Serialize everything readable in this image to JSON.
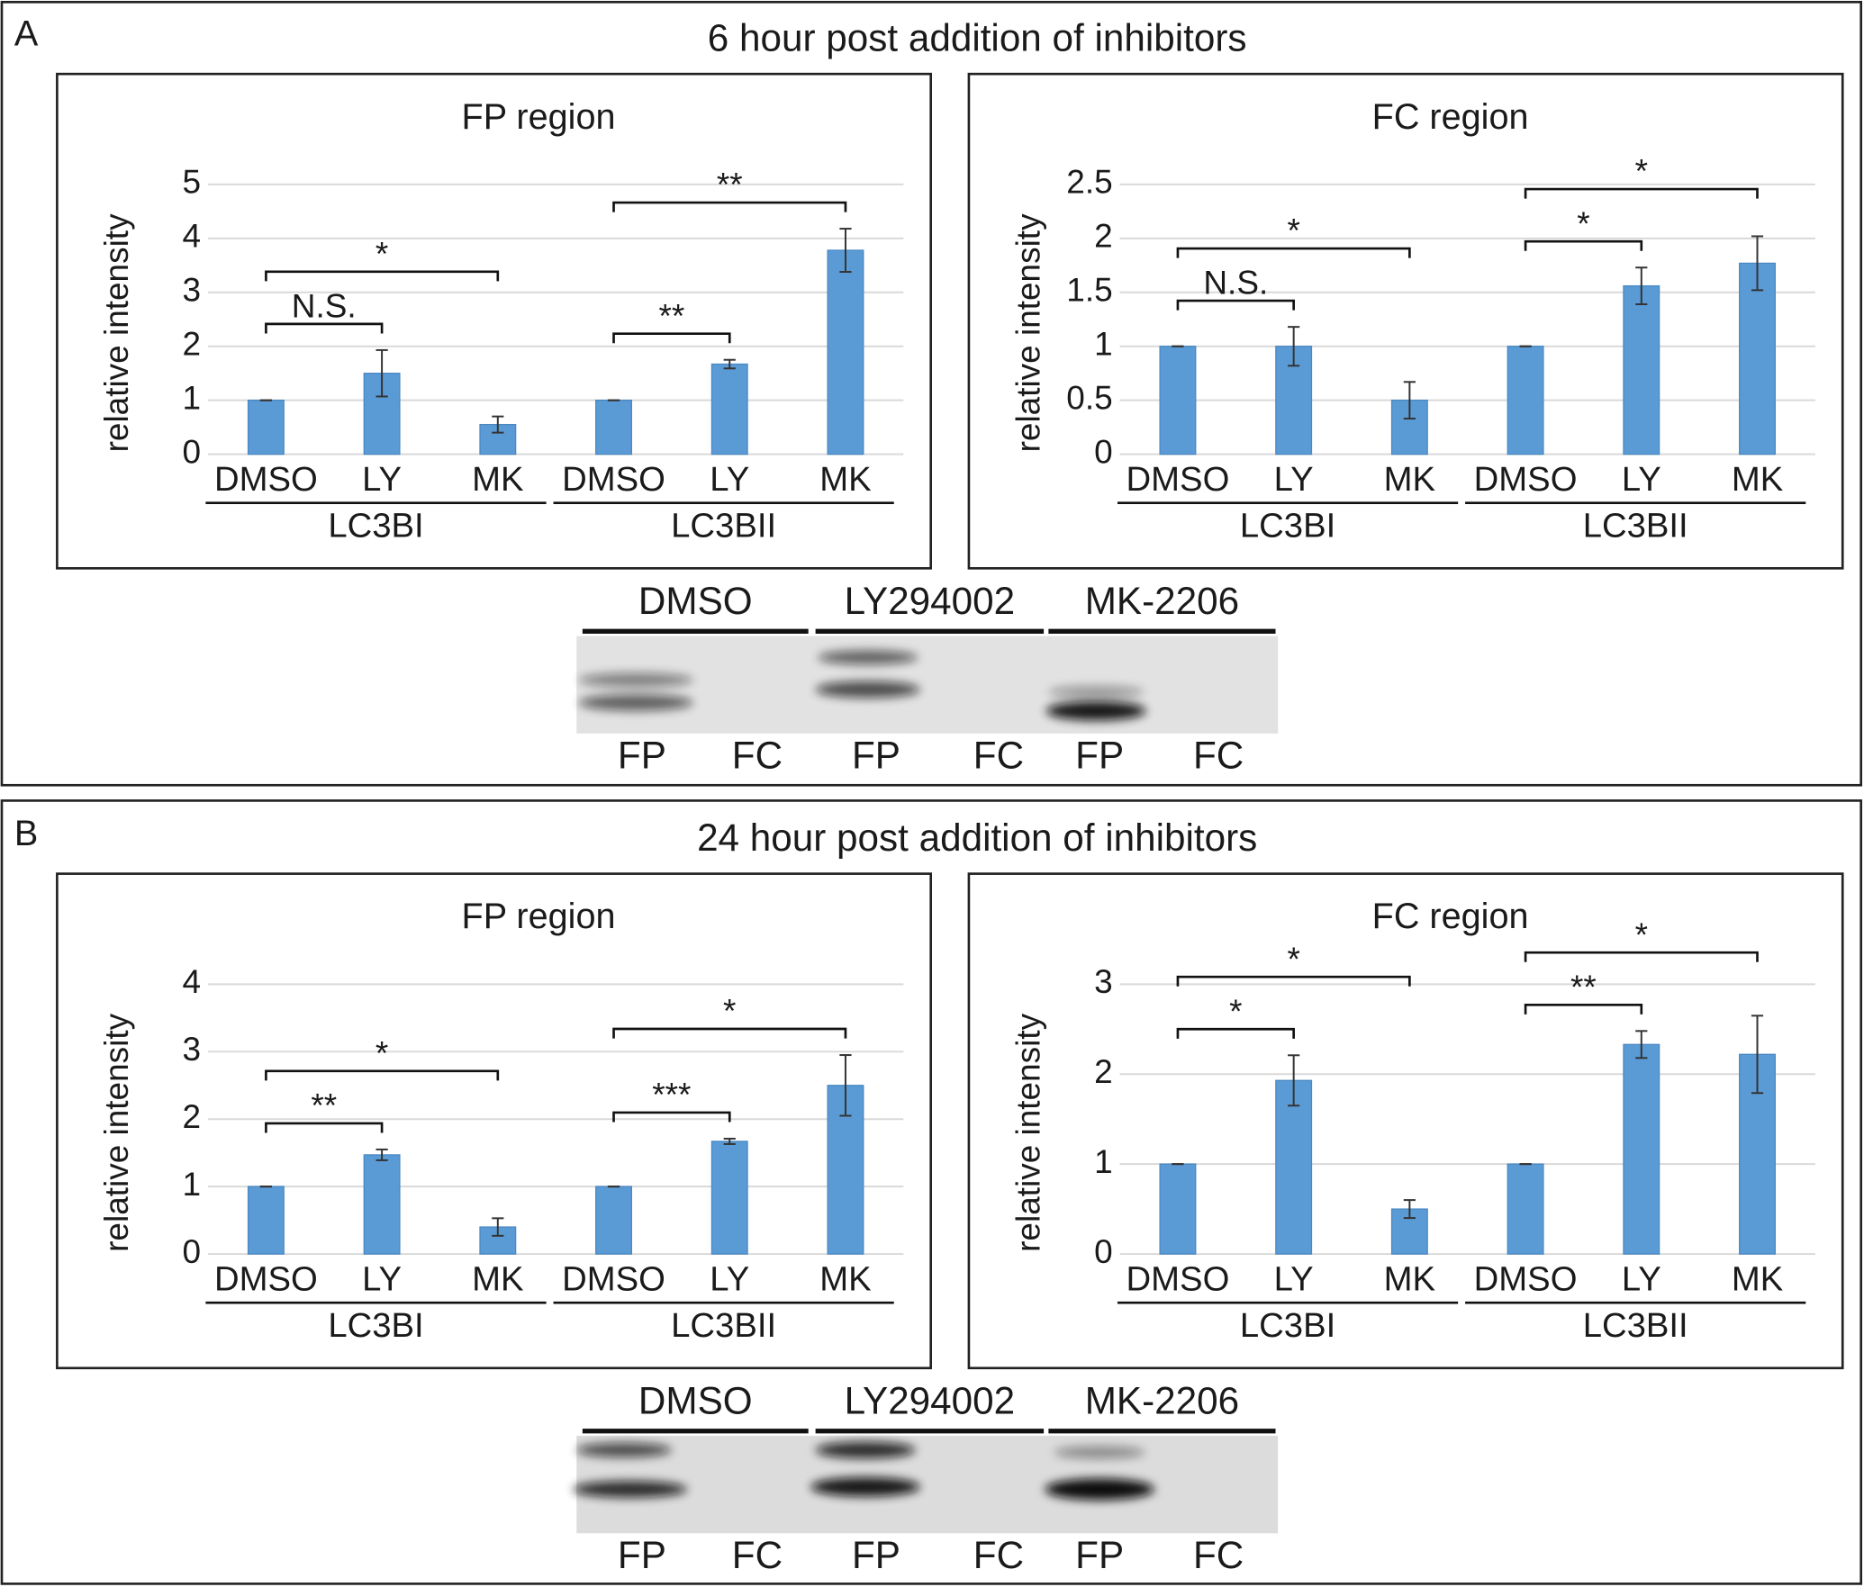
{
  "panels": [
    {
      "label": "A",
      "title": "6 hour post addition of inhibitors",
      "blot": {
        "treatments": [
          "DMSO",
          "LY294002",
          "MK-2206"
        ],
        "lanes": [
          "FP",
          "FC",
          "FP",
          "FC",
          "FP",
          "FC"
        ]
      }
    },
    {
      "label": "B",
      "title": "24 hour post addition of inhibitors",
      "blot": {
        "treatments": [
          "DMSO",
          "LY294002",
          "MK-2206"
        ],
        "lanes": [
          "FP",
          "FC",
          "FP",
          "FC",
          "FP",
          "FC"
        ]
      }
    }
  ],
  "chart_data": [
    {
      "type": "bar",
      "title": "FP region",
      "y_label": "relative intensity",
      "categories": [
        "DMSO",
        "LY",
        "MK",
        "DMSO",
        "LY",
        "MK"
      ],
      "groups": [
        "LC3BI",
        "LC3BII"
      ],
      "values": [
        1,
        1.5,
        0.55,
        1,
        1.67,
        3.78
      ],
      "errors": [
        0,
        0.43,
        0.15,
        0,
        0.08,
        0.4
      ],
      "color": "#5b9bd5",
      "ylim": [
        0,
        5
      ],
      "yticks": [
        0,
        1,
        2,
        3,
        4,
        5
      ],
      "grid": true,
      "annotations": [
        {
          "pair": [
            0,
            1
          ],
          "label": "N.S."
        },
        {
          "pair": [
            0,
            2
          ],
          "label": "*"
        },
        {
          "pair": [
            3,
            4
          ],
          "label": "**"
        },
        {
          "pair": [
            3,
            5
          ],
          "label": "**"
        }
      ]
    },
    {
      "type": "bar",
      "title": "FC region",
      "y_label": "relative intensity",
      "categories": [
        "DMSO",
        "LY",
        "MK",
        "DMSO",
        "LY",
        "MK"
      ],
      "groups": [
        "LC3BI",
        "LC3BII"
      ],
      "values": [
        1,
        1,
        0.5,
        1,
        1.56,
        1.77
      ],
      "errors": [
        0,
        0.18,
        0.17,
        0,
        0.17,
        0.25
      ],
      "color": "#5b9bd5",
      "ylim": [
        0,
        2.5
      ],
      "yticks": [
        0,
        0.5,
        1,
        1.5,
        2,
        2.5
      ],
      "grid": true,
      "annotations": [
        {
          "pair": [
            0,
            1
          ],
          "label": "N.S."
        },
        {
          "pair": [
            0,
            2
          ],
          "label": "*"
        },
        {
          "pair": [
            3,
            4
          ],
          "label": "*"
        },
        {
          "pair": [
            3,
            5
          ],
          "label": "*"
        }
      ]
    },
    {
      "type": "bar",
      "title": "FP region",
      "y_label": "relative intensity",
      "categories": [
        "DMSO",
        "LY",
        "MK",
        "DMSO",
        "LY",
        "MK"
      ],
      "groups": [
        "LC3BI",
        "LC3BII"
      ],
      "values": [
        1,
        1.47,
        0.4,
        1,
        1.67,
        2.5
      ],
      "errors": [
        0,
        0.08,
        0.13,
        0,
        0.04,
        0.45
      ],
      "color": "#5b9bd5",
      "ylim": [
        0,
        4
      ],
      "yticks": [
        0,
        1,
        2,
        3,
        4
      ],
      "grid": true,
      "annotations": [
        {
          "pair": [
            0,
            1
          ],
          "label": "**"
        },
        {
          "pair": [
            0,
            2
          ],
          "label": "*"
        },
        {
          "pair": [
            3,
            4
          ],
          "label": "***"
        },
        {
          "pair": [
            3,
            5
          ],
          "label": "*"
        }
      ]
    },
    {
      "type": "bar",
      "title": "FC region",
      "y_label": "relative intensity",
      "categories": [
        "DMSO",
        "LY",
        "MK",
        "DMSO",
        "LY",
        "MK"
      ],
      "groups": [
        "LC3BI",
        "LC3BII"
      ],
      "values": [
        1,
        1.93,
        0.5,
        1,
        2.33,
        2.22
      ],
      "errors": [
        0,
        0.28,
        0.1,
        0,
        0.15,
        0.43
      ],
      "color": "#5b9bd5",
      "ylim": [
        0,
        3
      ],
      "yticks": [
        0,
        1,
        2,
        3
      ],
      "grid": true,
      "annotations": [
        {
          "pair": [
            0,
            1
          ],
          "label": "*"
        },
        {
          "pair": [
            0,
            2
          ],
          "label": "*"
        },
        {
          "pair": [
            3,
            4
          ],
          "label": "**"
        },
        {
          "pair": [
            3,
            5
          ],
          "label": "*"
        }
      ]
    }
  ]
}
